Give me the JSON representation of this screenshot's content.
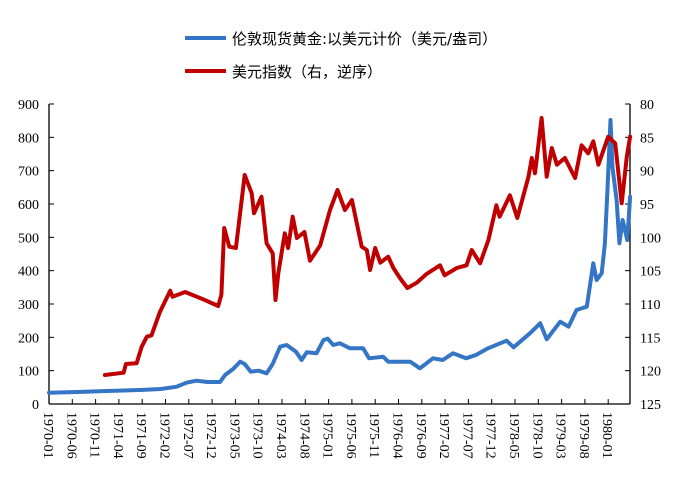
{
  "chart_data": {
    "type": "line",
    "title": "",
    "x_unit": "months since 1970-01",
    "xlabel": "",
    "ylabel_left": "",
    "ylabel_right": "",
    "x_tick_labels": [
      "1970-01",
      "1970-06",
      "1970-11",
      "1971-04",
      "1971-09",
      "1972-02",
      "1972-07",
      "1972-12",
      "1973-05",
      "1973-10",
      "1974-03",
      "1974-08",
      "1975-01",
      "1975-06",
      "1975-11",
      "1976-04",
      "1976-09",
      "1977-02",
      "1977-07",
      "1977-12",
      "1978-05",
      "1978-10",
      "1979-03",
      "1979-08",
      "1980-01"
    ],
    "xlim": [
      0,
      124.7
    ],
    "y_left": {
      "range": [
        0,
        900
      ],
      "ticks": [
        "0",
        "100",
        "200",
        "300",
        "400",
        "500",
        "600",
        "700",
        "800",
        "900"
      ]
    },
    "y_right": {
      "range": [
        80,
        125
      ],
      "inverted": true,
      "ticks": [
        "80",
        "85",
        "90",
        "95",
        "100",
        "105",
        "110",
        "115",
        "120",
        "125"
      ]
    },
    "grid": false,
    "legend_placement": "top-center",
    "series": [
      {
        "name": "伦敦现货黄金:以美元计价（美元/盎司）",
        "axis": "left",
        "color": "#3475c6",
        "points": [
          [
            0,
            34
          ],
          [
            6,
            36
          ],
          [
            12.4,
            39
          ],
          [
            19.5,
            42
          ],
          [
            24,
            45
          ],
          [
            27.4,
            52
          ],
          [
            29.5,
            64
          ],
          [
            31.6,
            70
          ],
          [
            34,
            66
          ],
          [
            36.7,
            66
          ],
          [
            37.8,
            87
          ],
          [
            39.5,
            105
          ],
          [
            41,
            127
          ],
          [
            42,
            120
          ],
          [
            43.3,
            97
          ],
          [
            45,
            100
          ],
          [
            46.7,
            92
          ],
          [
            48,
            120
          ],
          [
            49.6,
            172
          ],
          [
            51,
            177
          ],
          [
            53,
            157
          ],
          [
            54.2,
            132
          ],
          [
            55.3,
            155
          ],
          [
            57.4,
            152
          ],
          [
            58.9,
            192
          ],
          [
            59.8,
            196
          ],
          [
            61,
            177
          ],
          [
            62.4,
            182
          ],
          [
            64.6,
            167
          ],
          [
            67.4,
            167
          ],
          [
            68.7,
            137
          ],
          [
            71.7,
            142
          ],
          [
            72.8,
            127
          ],
          [
            77.5,
            127
          ],
          [
            79.6,
            107
          ],
          [
            82.4,
            137
          ],
          [
            84.5,
            132
          ],
          [
            86.7,
            152
          ],
          [
            89.5,
            137
          ],
          [
            91.6,
            147
          ],
          [
            94.2,
            167
          ],
          [
            98.2,
            190
          ],
          [
            99.7,
            170
          ],
          [
            103.2,
            212
          ],
          [
            105.4,
            242
          ],
          [
            106.8,
            194
          ],
          [
            109.7,
            247
          ],
          [
            111.5,
            232
          ],
          [
            113.2,
            282
          ],
          [
            115.4,
            292
          ],
          [
            116.8,
            422
          ],
          [
            117.5,
            372
          ],
          [
            118.6,
            392
          ],
          [
            119.3,
            482
          ],
          [
            119.8,
            632
          ],
          [
            120.5,
            852
          ],
          [
            120.9,
            712
          ],
          [
            121.8,
            612
          ],
          [
            122.4,
            482
          ],
          [
            123.1,
            552
          ],
          [
            124.1,
            492
          ],
          [
            124.7,
            622
          ]
        ]
      },
      {
        "name": "美元指数（右，逆序）",
        "axis": "right",
        "color": "#c00000",
        "points": [
          [
            12,
            120.65
          ],
          [
            16,
            120.3
          ],
          [
            16.5,
            119
          ],
          [
            18.8,
            118.9
          ],
          [
            19.9,
            116.4
          ],
          [
            21,
            114.9
          ],
          [
            22,
            114.7
          ],
          [
            23.8,
            111.2
          ],
          [
            26,
            108
          ],
          [
            26.5,
            108.9
          ],
          [
            29.2,
            108.2
          ],
          [
            33.1,
            109.3
          ],
          [
            36.3,
            110.3
          ],
          [
            37,
            108.6
          ],
          [
            37.6,
            98.6
          ],
          [
            38.7,
            101.4
          ],
          [
            40.1,
            101.6
          ],
          [
            41,
            96.4
          ],
          [
            42,
            90.65
          ],
          [
            43.5,
            93.4
          ],
          [
            44,
            96.4
          ],
          [
            45.6,
            93.9
          ],
          [
            46.7,
            100.9
          ],
          [
            48,
            102.4
          ],
          [
            48.6,
            109.4
          ],
          [
            49.2,
            105.4
          ],
          [
            50.6,
            99.4
          ],
          [
            51.3,
            101.6
          ],
          [
            52.3,
            96.9
          ],
          [
            53.2,
            100.1
          ],
          [
            54.8,
            99.2
          ],
          [
            56,
            103.5
          ],
          [
            58.2,
            101.2
          ],
          [
            60.3,
            95.9
          ],
          [
            61.9,
            92.9
          ],
          [
            63.5,
            95.9
          ],
          [
            65,
            94.4
          ],
          [
            67.1,
            101.4
          ],
          [
            68.2,
            101.9
          ],
          [
            68.9,
            104.9
          ],
          [
            70,
            101.6
          ],
          [
            71.1,
            103.8
          ],
          [
            72.8,
            102.9
          ],
          [
            73.9,
            104.6
          ],
          [
            75.3,
            106.1
          ],
          [
            76.9,
            107.6
          ],
          [
            78.9,
            106.8
          ],
          [
            81,
            105.5
          ],
          [
            83.9,
            104.2
          ],
          [
            84.9,
            105.7
          ],
          [
            87.5,
            104.6
          ],
          [
            89.6,
            104.2
          ],
          [
            90.7,
            101.9
          ],
          [
            92.5,
            103.9
          ],
          [
            94.3,
            100.4
          ],
          [
            96,
            95.2
          ],
          [
            96.7,
            96.9
          ],
          [
            98.9,
            93.7
          ],
          [
            100.5,
            97.1
          ],
          [
            102.9,
            90.9
          ],
          [
            103.6,
            88.1
          ],
          [
            104.3,
            90.4
          ],
          [
            105.7,
            82.1
          ],
          [
            106.8,
            90.9
          ],
          [
            107.9,
            86.6
          ],
          [
            109,
            89.1
          ],
          [
            110.7,
            88.1
          ],
          [
            112.9,
            91.1
          ],
          [
            114.3,
            86.2
          ],
          [
            115.7,
            87.4
          ],
          [
            116.8,
            85.6
          ],
          [
            117.9,
            89.1
          ],
          [
            120,
            84.9
          ],
          [
            121.5,
            85.9
          ],
          [
            122.9,
            94.9
          ],
          [
            124,
            87.9
          ],
          [
            124.7,
            84.9
          ]
        ]
      }
    ]
  }
}
